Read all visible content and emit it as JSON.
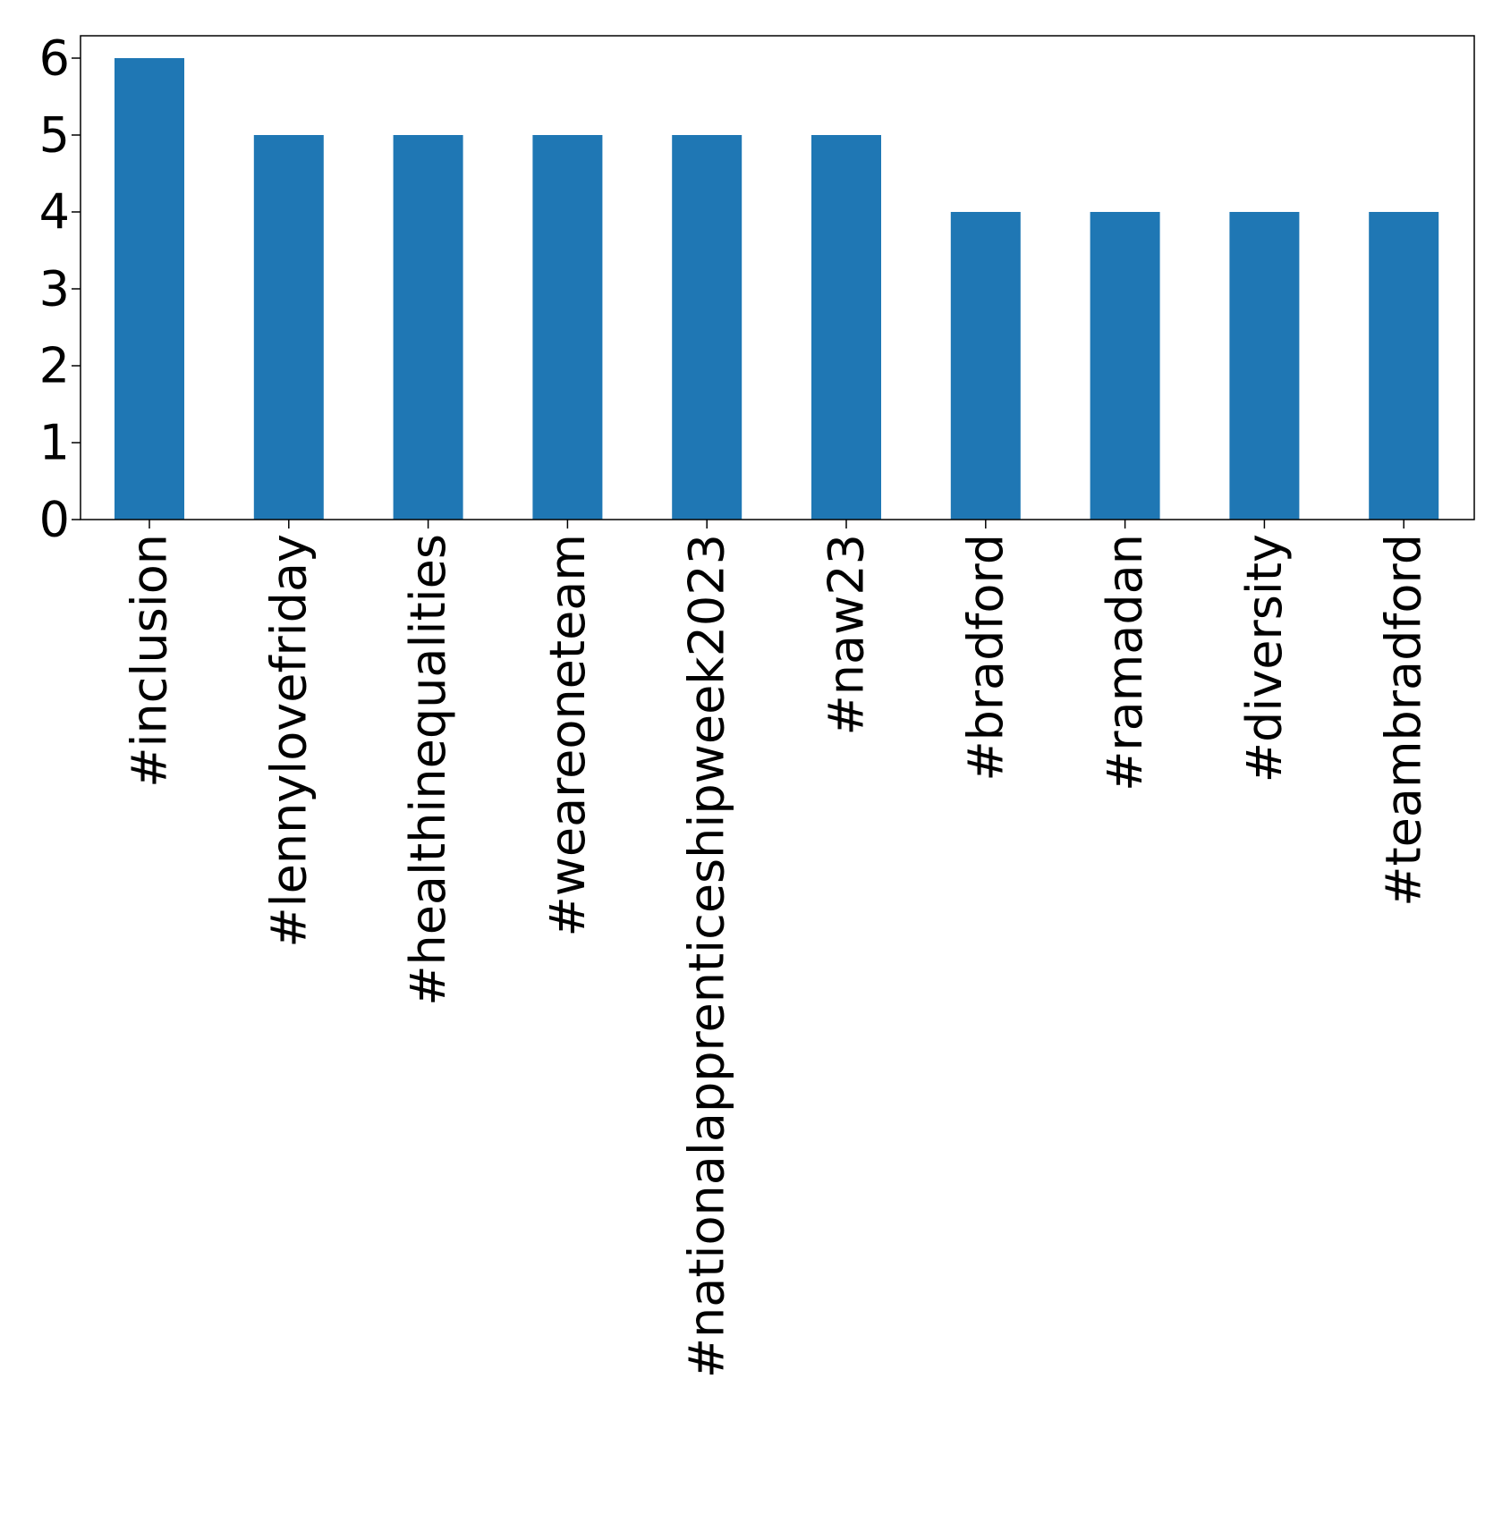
{
  "chart_data": {
    "type": "bar",
    "title": "",
    "xlabel": "",
    "ylabel": "",
    "categories": [
      "#inclusion",
      "#lennylovefriday",
      "#healthinequalities",
      "#weareoneteam",
      "#nationalapprenticeshipweek2023",
      "#naw23",
      "#bradford",
      "#ramadan",
      "#diversity",
      "#teambradford"
    ],
    "values": [
      6,
      5,
      5,
      5,
      5,
      5,
      4,
      4,
      4,
      4
    ],
    "ylim": [
      0,
      6.3
    ],
    "yticks": [
      "0",
      "1",
      "2",
      "3",
      "4",
      "5",
      "6"
    ],
    "bar_color": "#1f77b4",
    "grid": false,
    "legend": "none"
  }
}
